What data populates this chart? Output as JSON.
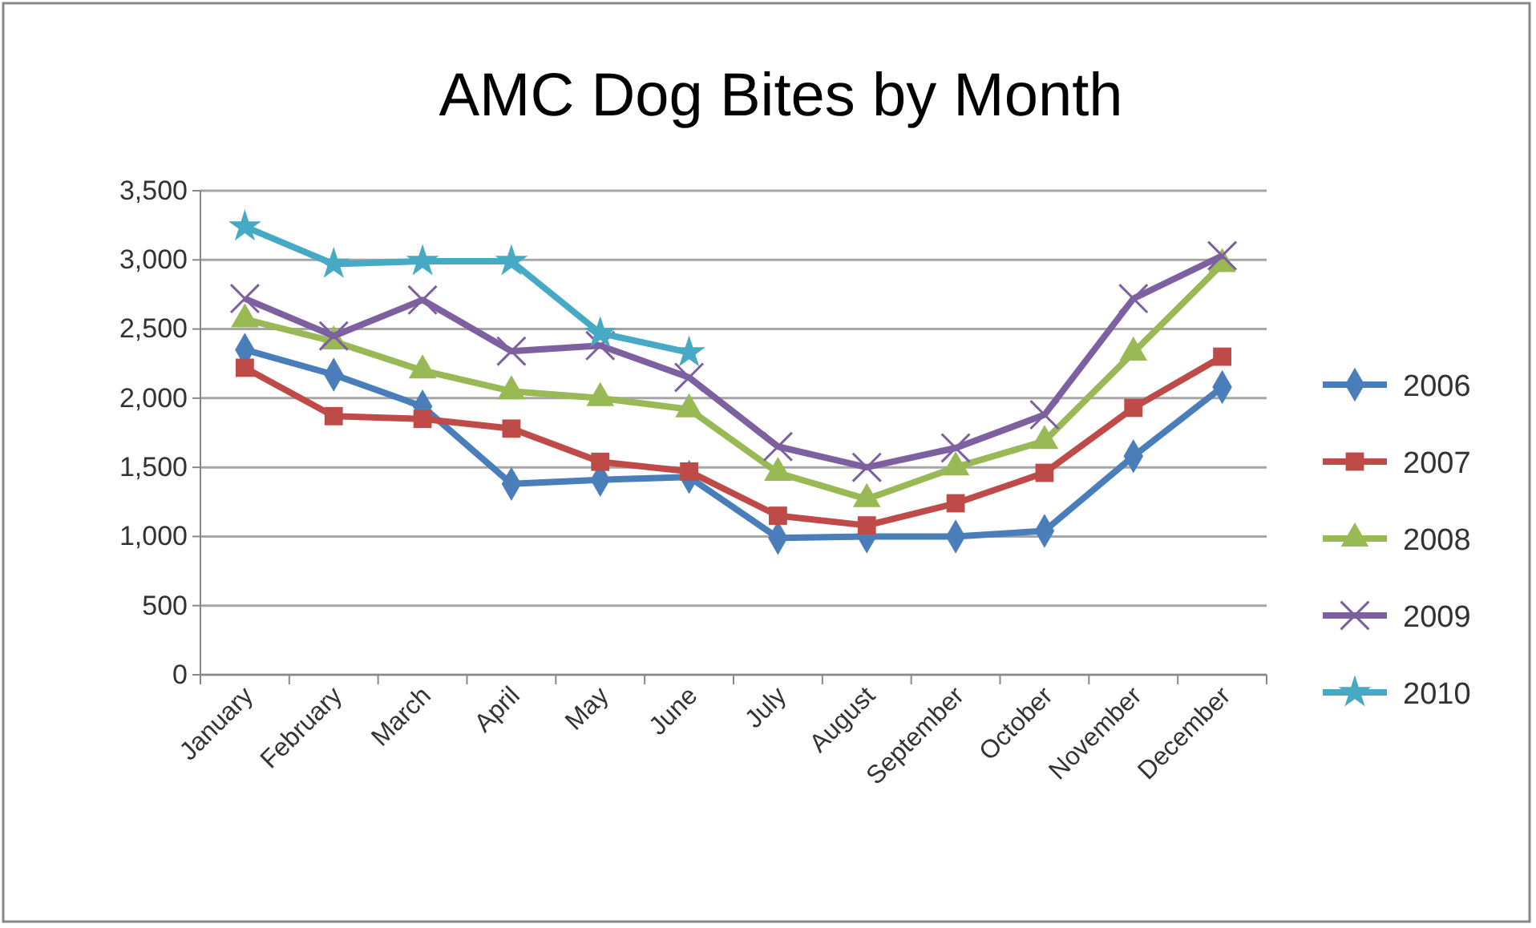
{
  "chart_data": {
    "type": "line",
    "title": "AMC Dog Bites by Month",
    "categories": [
      "January",
      "February",
      "March",
      "April",
      "May",
      "June",
      "July",
      "August",
      "September",
      "October",
      "November",
      "December"
    ],
    "series": [
      {
        "name": "2006",
        "color": "#4a7ebb",
        "marker": "diamond",
        "values": [
          2350,
          2170,
          1940,
          1380,
          1410,
          1430,
          990,
          1000,
          1000,
          1040,
          1580,
          2080
        ]
      },
      {
        "name": "2007",
        "color": "#be4b48",
        "marker": "square",
        "values": [
          2220,
          1870,
          1850,
          1780,
          1540,
          1470,
          1150,
          1080,
          1240,
          1460,
          1930,
          2300
        ]
      },
      {
        "name": "2008",
        "color": "#98b954",
        "marker": "triangle",
        "values": [
          2570,
          2410,
          2200,
          2050,
          2000,
          1920,
          1460,
          1270,
          1500,
          1690,
          2330,
          2970
        ]
      },
      {
        "name": "2009",
        "color": "#7d60a0",
        "marker": "cross",
        "values": [
          2720,
          2450,
          2710,
          2340,
          2380,
          2150,
          1650,
          1500,
          1640,
          1880,
          2720,
          3030
        ]
      },
      {
        "name": "2010",
        "color": "#46aac5",
        "marker": "star",
        "values": [
          3240,
          2970,
          2990,
          2990,
          2470,
          2330,
          null,
          null,
          null,
          null,
          null,
          null
        ]
      }
    ],
    "ylim": [
      0,
      3500
    ],
    "yticks": [
      {
        "value": 0,
        "label": "0"
      },
      {
        "value": 500,
        "label": "500"
      },
      {
        "value": 1000,
        "label": "1,000"
      },
      {
        "value": 1500,
        "label": "1,500"
      },
      {
        "value": 2000,
        "label": "2,000"
      },
      {
        "value": 2500,
        "label": "2,500"
      },
      {
        "value": 3000,
        "label": "3,000"
      },
      {
        "value": 3500,
        "label": "3,500"
      }
    ],
    "grid": "y",
    "legend": "right",
    "line_style": "solid"
  }
}
